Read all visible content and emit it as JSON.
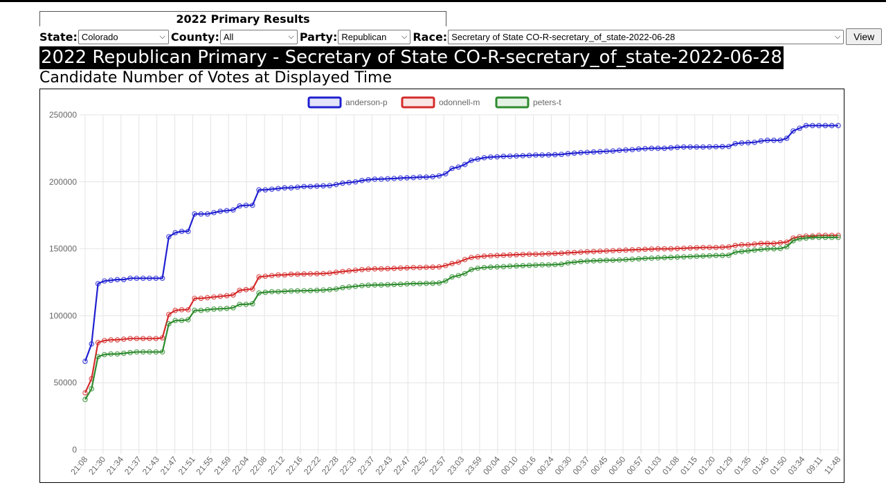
{
  "panel": {
    "title": "2022 Primary Results"
  },
  "controls": {
    "state_label": "State:",
    "state_value": "Colorado",
    "county_label": "County:",
    "county_value": "All",
    "party_label": "Party:",
    "party_value": "Republican",
    "race_label": "Race:",
    "race_value": "Secretary of State CO-R-secretary_of_state-2022-06-28",
    "view_label": "View"
  },
  "heading": "2022 Republican Primary - Secretary of State CO-R-secretary_of_state-2022-06-28",
  "subheading": "Candidate Number of Votes at Displayed Time",
  "chart_data": {
    "type": "line",
    "ylim": [
      0,
      250000
    ],
    "yticks": [
      "0",
      "50000",
      "100000",
      "150000",
      "200000",
      "250000"
    ],
    "xtick_labels": [
      "21:08",
      "21:30",
      "21:34",
      "21:37",
      "21:43",
      "21:47",
      "21:51",
      "21:55",
      "21:59",
      "22:04",
      "22:08",
      "22:12",
      "22:16",
      "22:22",
      "22:28",
      "22:33",
      "22:37",
      "22:43",
      "22:47",
      "22:52",
      "22:57",
      "23:03",
      "23:59",
      "00:04",
      "00:10",
      "00:16",
      "00:24",
      "00:30",
      "00:37",
      "00:45",
      "00:50",
      "00:57",
      "01:03",
      "01:08",
      "01:15",
      "01:20",
      "01:29",
      "01:35",
      "01:45",
      "01:50",
      "03:34",
      "09:11",
      "11:48"
    ],
    "grid": true,
    "legend_position": "top",
    "series": [
      {
        "name": "anderson-p",
        "color": "#1f1fd0",
        "values": [
          66000,
          79000,
          124000,
          126000,
          126500,
          127000,
          127000,
          128000,
          128000,
          128000,
          128000,
          128000,
          128000,
          159000,
          162000,
          163000,
          163000,
          176000,
          176000,
          176000,
          177000,
          178000,
          178500,
          179000,
          182000,
          182500,
          182500,
          194000,
          194000,
          194500,
          195000,
          195500,
          195500,
          196000,
          196500,
          196500,
          196800,
          197000,
          197200,
          198000,
          199000,
          199500,
          200000,
          201000,
          201500,
          202000,
          202000,
          202300,
          202500,
          202800,
          203000,
          203200,
          203500,
          203500,
          203800,
          204500,
          206000,
          210000,
          211000,
          213000,
          216000,
          217000,
          218000,
          218500,
          218700,
          219000,
          219100,
          219300,
          219500,
          219700,
          220000,
          220000,
          220100,
          220300,
          220500,
          221000,
          221400,
          221800,
          222000,
          222300,
          222500,
          222800,
          223000,
          223500,
          223800,
          224000,
          224500,
          224800,
          225000,
          225000,
          225000,
          225400,
          225800,
          226000,
          226000,
          226000,
          226000,
          226100,
          226200,
          226300,
          226400,
          228500,
          229000,
          229200,
          229500,
          230500,
          231000,
          231000,
          231000,
          232500,
          238000,
          240000,
          242000,
          242000,
          242000,
          242000,
          242000,
          242000
        ]
      },
      {
        "name": "odonnell-m",
        "color": "#d42b2b",
        "values": [
          42500,
          53000,
          80000,
          81500,
          82000,
          82000,
          82500,
          83000,
          83000,
          83000,
          83000,
          83000,
          83500,
          101000,
          104000,
          104500,
          104500,
          113000,
          113000,
          113500,
          114000,
          114500,
          115000,
          115500,
          119000,
          119500,
          120000,
          129000,
          129500,
          130000,
          130500,
          130500,
          131000,
          131000,
          131200,
          131300,
          131400,
          131500,
          131800,
          132500,
          133000,
          133500,
          134000,
          134500,
          134800,
          135000,
          135000,
          135200,
          135400,
          135600,
          135800,
          136000,
          136000,
          136200,
          136300,
          136500,
          137500,
          139000,
          140000,
          142000,
          143500,
          144000,
          144500,
          144800,
          145000,
          145200,
          145400,
          145600,
          145800,
          146000,
          146000,
          146100,
          146300,
          146500,
          146700,
          147000,
          147200,
          147500,
          147800,
          148000,
          148200,
          148400,
          148600,
          148800,
          149000,
          149200,
          149400,
          149600,
          149800,
          150000,
          150000,
          150000,
          150200,
          150400,
          150600,
          150800,
          151000,
          151000,
          151000,
          151200,
          151400,
          152500,
          153000,
          153000,
          153500,
          154000,
          154000,
          154000,
          154500,
          155000,
          158000,
          159000,
          159500,
          159500,
          160000,
          160000,
          160000,
          160000
        ]
      },
      {
        "name": "peters-t",
        "color": "#2e8b2e",
        "values": [
          37500,
          45500,
          69500,
          71000,
          71500,
          71500,
          72000,
          72500,
          73000,
          73000,
          73000,
          73000,
          73000,
          94000,
          96500,
          96500,
          97000,
          104000,
          104000,
          104500,
          105000,
          105200,
          105500,
          106000,
          108500,
          108500,
          109000,
          117000,
          117500,
          118000,
          118000,
          118300,
          118500,
          118600,
          118700,
          118800,
          119000,
          119200,
          119500,
          120000,
          121000,
          121500,
          122000,
          122500,
          122800,
          123000,
          123000,
          123200,
          123400,
          123500,
          123800,
          124000,
          124000,
          124200,
          124300,
          124500,
          126000,
          129000,
          130000,
          131500,
          134500,
          135500,
          136000,
          136300,
          136500,
          136700,
          137000,
          137200,
          137400,
          137600,
          137800,
          138000,
          138000,
          138200,
          138500,
          139500,
          140000,
          140500,
          140800,
          141000,
          141200,
          141400,
          141500,
          141700,
          141900,
          142200,
          142500,
          142800,
          143000,
          143200,
          143400,
          143600,
          143800,
          144000,
          144200,
          144400,
          144600,
          144800,
          145000,
          145000,
          145200,
          147500,
          148000,
          148500,
          149000,
          149500,
          150000,
          150000,
          150200,
          151500,
          156000,
          157500,
          158000,
          158500,
          158500,
          158500,
          158500,
          158500
        ]
      }
    ]
  }
}
